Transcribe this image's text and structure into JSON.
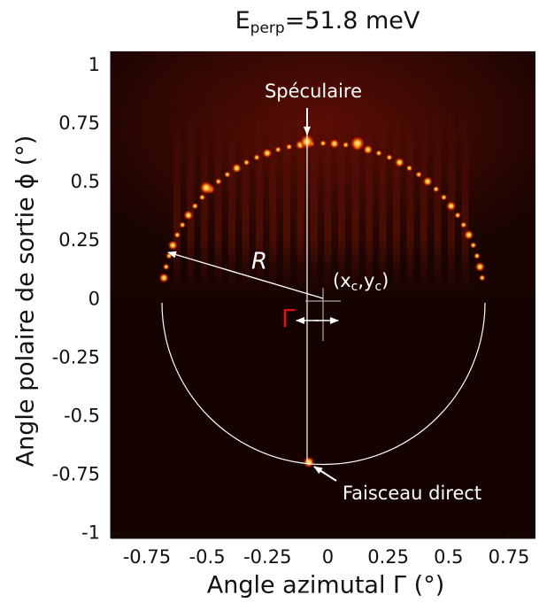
{
  "chart_data": {
    "type": "image",
    "title": {
      "main": "E",
      "sub": "perp",
      "rest": "=51.8 meV"
    },
    "x_label": "Angle azimutal Γ (°)",
    "y_label": "Angle polaire de sortie ϕ (°)",
    "xlim": [
      -0.9,
      0.86
    ],
    "ylim": [
      -1.02,
      1.06
    ],
    "xticks": [
      -0.75,
      -0.5,
      -0.25,
      0,
      0.25,
      0.5,
      0.75
    ],
    "yticks": [
      -1,
      -0.75,
      -0.5,
      -0.25,
      0,
      0.25,
      0.5,
      0.75,
      1
    ],
    "annotations": {
      "specular": "Spéculaire",
      "direct": "Faisceau direct",
      "radius": "R",
      "gamma": "Γ",
      "center": {
        "open": "(x",
        "sub1": "c",
        "mid": ",y",
        "sub2": "c",
        "close": ")"
      }
    }
  }
}
